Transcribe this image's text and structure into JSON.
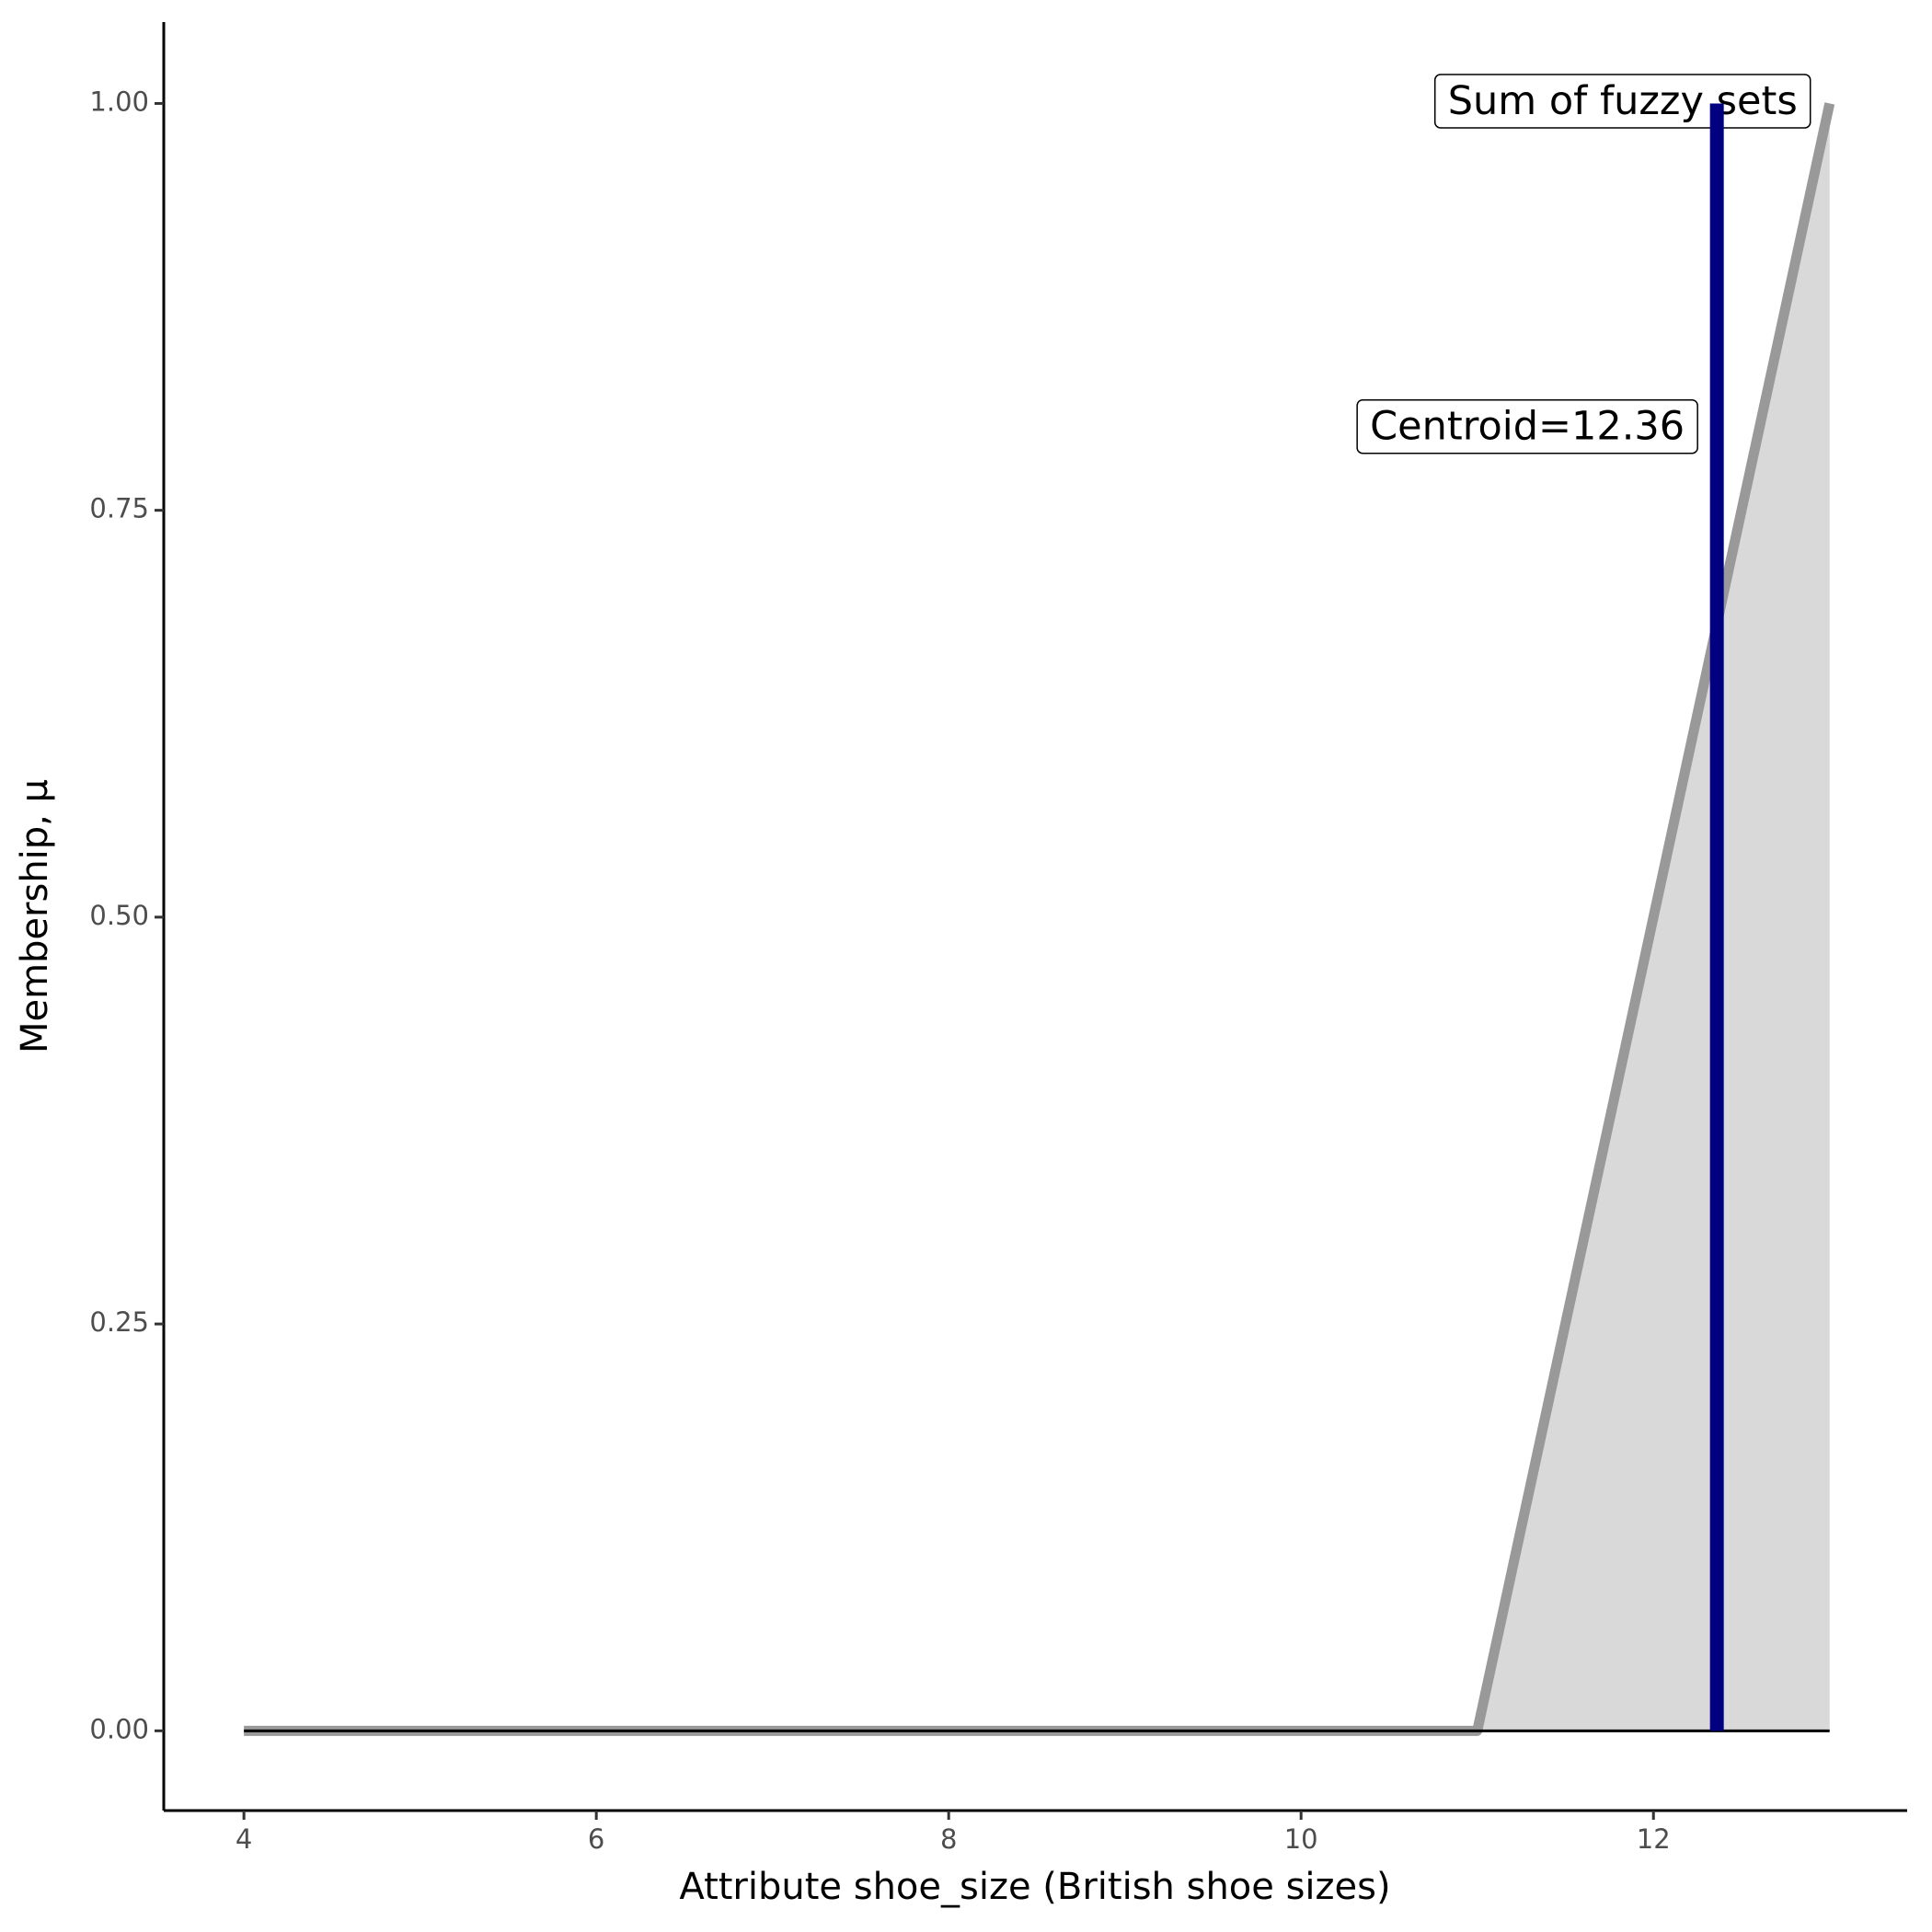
{
  "chart_data": {
    "type": "area",
    "x_label": "Attribute shoe_size (British shoe sizes)",
    "y_label": "Membership, μ",
    "series": [
      {
        "name": "Sum of fuzzy sets",
        "color": "#999999",
        "fill": "#d9d9d9",
        "x": [
          4,
          11,
          13
        ],
        "values": [
          0,
          0,
          1
        ]
      }
    ],
    "centroid": {
      "value": 12.36,
      "label": "Centroid=12.36",
      "color": "#000080"
    },
    "xlim": [
      3.545,
      13.44
    ],
    "xticks": [
      4,
      6,
      8,
      10,
      12
    ],
    "ylim": [
      -0.049,
      1.05
    ],
    "yticks": [
      {
        "value": 0,
        "label": "0.00"
      },
      {
        "value": 0.25,
        "label": "0.25"
      },
      {
        "value": 0.5,
        "label": "0.50"
      },
      {
        "value": 0.75,
        "label": "0.75"
      },
      {
        "value": 1,
        "label": "1.00"
      }
    ],
    "grid": false
  }
}
